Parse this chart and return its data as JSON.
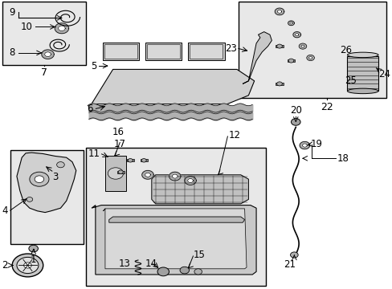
{
  "bg_color": "#ffffff",
  "line_color": "#000000",
  "gray_fill": "#e8e8e8",
  "dark_gray": "#c0c0c0",
  "mid_gray": "#d0d0d0"
}
